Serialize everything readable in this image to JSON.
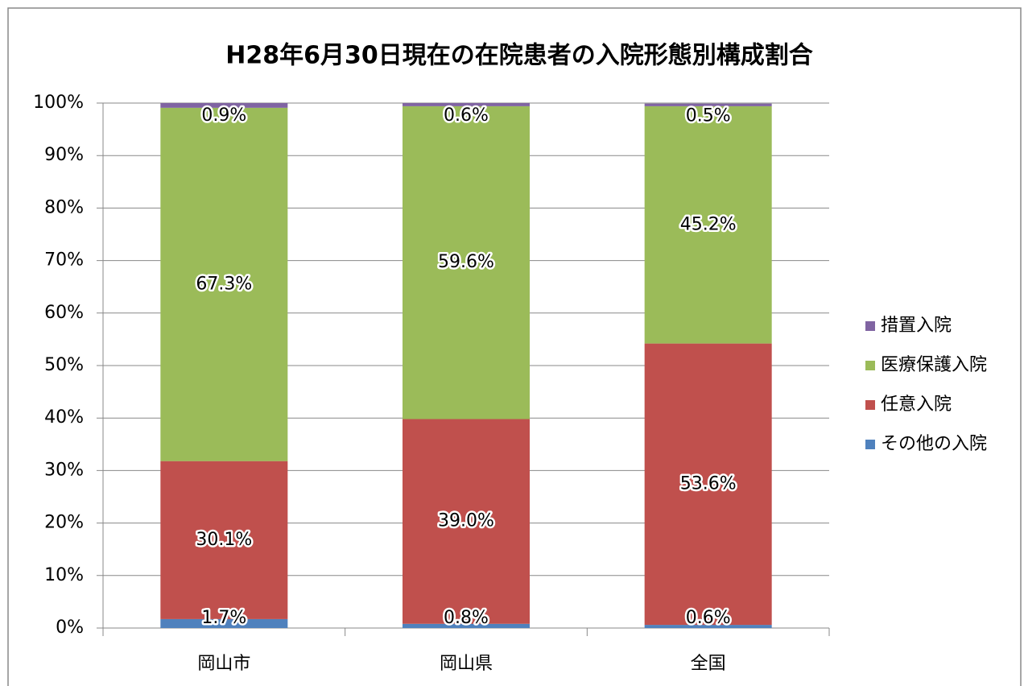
{
  "chart_data": {
    "type": "stacked_bar",
    "title": "H28年6月30日現在の在院患者の入院形態別構成割合",
    "categories": [
      "岡山市",
      "岡山県",
      "全国"
    ],
    "series": [
      {
        "name": "その他の入院",
        "color": "#4f81bd",
        "values": [
          1.7,
          0.8,
          0.6
        ],
        "value_labels": [
          "1.7%",
          "0.8%",
          "0.6%"
        ]
      },
      {
        "name": "任意入院",
        "color": "#c0504d",
        "values": [
          30.1,
          39.0,
          53.6
        ],
        "value_labels": [
          "30.1%",
          "39.0%",
          "53.6%"
        ]
      },
      {
        "name": "医療保護入院",
        "color": "#9bbb59",
        "values": [
          67.3,
          59.6,
          45.2
        ],
        "value_labels": [
          "67.3%",
          "59.6%",
          "45.2%"
        ]
      },
      {
        "name": "措置入院",
        "color": "#8064a2",
        "values": [
          0.9,
          0.6,
          0.5
        ],
        "value_labels": [
          "0.9%",
          "0.6%",
          "0.5%"
        ]
      }
    ],
    "ylim": [
      0,
      100
    ],
    "yticks": [
      {
        "value": 0,
        "label": "0%"
      },
      {
        "value": 10,
        "label": "10%"
      },
      {
        "value": 20,
        "label": "20%"
      },
      {
        "value": 30,
        "label": "30%"
      },
      {
        "value": 40,
        "label": "40%"
      },
      {
        "value": 50,
        "label": "50%"
      },
      {
        "value": 60,
        "label": "60%"
      },
      {
        "value": 70,
        "label": "70%"
      },
      {
        "value": 80,
        "label": "80%"
      },
      {
        "value": 90,
        "label": "90%"
      },
      {
        "value": 100,
        "label": "100%"
      }
    ],
    "grid": true,
    "legend": "right"
  }
}
